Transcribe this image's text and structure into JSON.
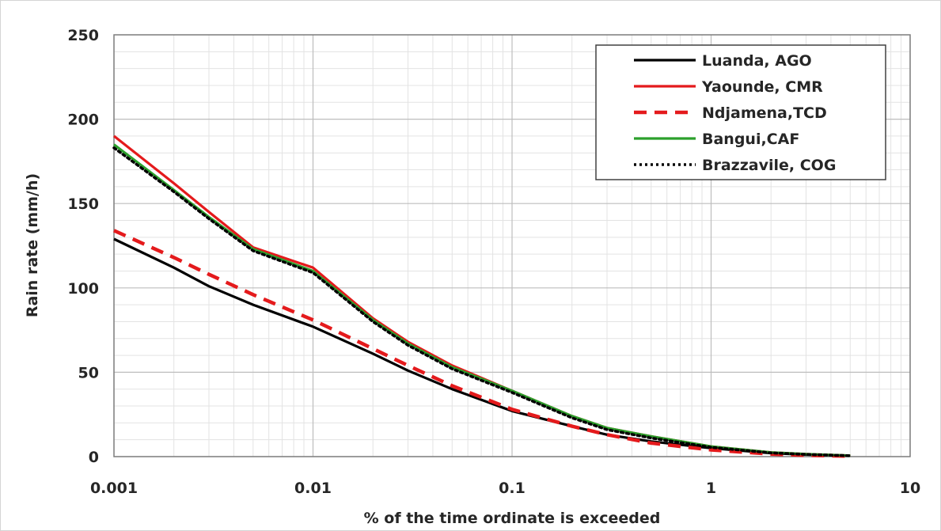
{
  "chart_data": {
    "type": "line",
    "title": "",
    "xlabel": "% of the time ordinate is exceeded",
    "ylabel": "Rain rate (mm/h)",
    "x_scale": "log",
    "xlim": [
      0.001,
      10
    ],
    "ylim": [
      0,
      250
    ],
    "x_ticks": [
      "0.001",
      "0.01",
      "0.1",
      "1",
      "10"
    ],
    "y_ticks": [
      "0",
      "50",
      "100",
      "150",
      "200",
      "250"
    ],
    "grid": true,
    "legend_position": "top-right",
    "series": [
      {
        "name": "Luanda, AGO",
        "color": "#000000",
        "style": "solid",
        "x": [
          0.001,
          0.002,
          0.003,
          0.005,
          0.01,
          0.02,
          0.03,
          0.05,
          0.1,
          0.2,
          0.3,
          0.5,
          1,
          2,
          3,
          5
        ],
        "y": [
          129,
          112,
          101,
          90,
          77,
          61,
          51,
          40,
          27,
          18,
          13,
          9,
          5,
          2,
          1.2,
          0.5
        ]
      },
      {
        "name": "Yaounde, CMR",
        "color": "#e41a1c",
        "style": "solid",
        "x": [
          0.001,
          0.002,
          0.003,
          0.005,
          0.01,
          0.02,
          0.03,
          0.05,
          0.1,
          0.2,
          0.3,
          0.5,
          1,
          2,
          3,
          5
        ],
        "y": [
          190,
          162,
          145,
          124,
          112,
          82,
          68,
          54,
          39,
          24,
          17,
          12,
          6,
          2.5,
          1.5,
          0.6
        ]
      },
      {
        "name": "Ndjamena,TCD",
        "color": "#e41a1c",
        "style": "dashed",
        "x": [
          0.001,
          0.002,
          0.003,
          0.005,
          0.01,
          0.02,
          0.03,
          0.05,
          0.1,
          0.2,
          0.3,
          0.5,
          1,
          2,
          3,
          5
        ],
        "y": [
          134,
          118,
          108,
          96,
          81,
          64,
          54,
          42,
          28,
          18,
          13,
          8,
          4,
          1.5,
          0.8,
          0.3
        ]
      },
      {
        "name": "Bangui,CAF",
        "color": "#2ca02c",
        "style": "solid",
        "x": [
          0.001,
          0.002,
          0.003,
          0.005,
          0.01,
          0.02,
          0.03,
          0.05,
          0.1,
          0.2,
          0.3,
          0.5,
          1,
          2,
          3,
          5
        ],
        "y": [
          185,
          158,
          142,
          123,
          110,
          81,
          67,
          53,
          39,
          24,
          17,
          12,
          6,
          2.5,
          1.5,
          0.6
        ]
      },
      {
        "name": "Brazzavile, COG",
        "color": "#000000",
        "style": "dotted",
        "x": [
          0.001,
          0.002,
          0.003,
          0.005,
          0.01,
          0.02,
          0.03,
          0.05,
          0.1,
          0.2,
          0.3,
          0.5,
          1,
          2,
          3,
          5
        ],
        "y": [
          183,
          157,
          141,
          122,
          109,
          80,
          66,
          52,
          38,
          23,
          16,
          11,
          5.5,
          2.2,
          1.3,
          0.5
        ]
      }
    ]
  }
}
